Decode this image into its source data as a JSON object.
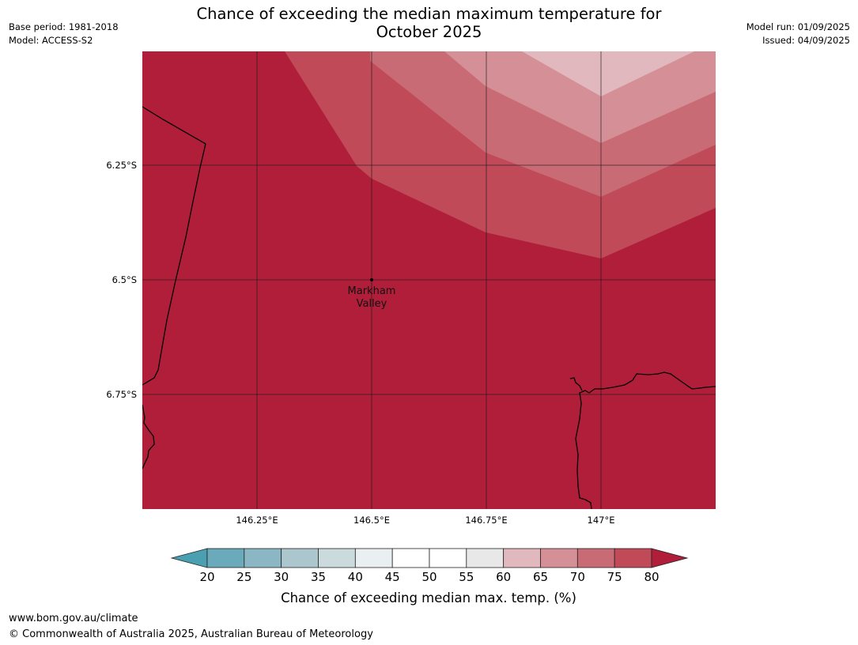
{
  "header": {
    "title_line1": "Chance of exceeding the median maximum temperature for",
    "title_line2": "October 2025",
    "base_period": "Base period: 1981-2018",
    "model": "Model: ACCESS-S2",
    "model_run": "Model run: 01/09/2025",
    "issued": "Issued: 04/09/2025"
  },
  "map": {
    "lat_labels": [
      "6.25°S",
      "6.5°S",
      "6.75°S"
    ],
    "lon_labels": [
      "146.25°E",
      "146.5°E",
      "146.75°E",
      "147°E"
    ],
    "place_label_line1": "Markham",
    "place_label_line2": "Valley",
    "bands": [
      {
        "range": ">80",
        "color": "#b01e39"
      },
      {
        "range": "75-80",
        "color": "#c04a58"
      },
      {
        "range": "70-75",
        "color": "#c96b74"
      },
      {
        "range": "65-70",
        "color": "#d58f96"
      },
      {
        "range": "60-65",
        "color": "#e0b8bd"
      }
    ]
  },
  "colorbar": {
    "ticks": [
      "20",
      "25",
      "30",
      "35",
      "40",
      "45",
      "50",
      "55",
      "60",
      "65",
      "70",
      "75",
      "80"
    ],
    "colors": [
      "#4a9fb0",
      "#6aaabb",
      "#8bb7c4",
      "#abc6cd",
      "#cbdadd",
      "#eaf0f1",
      "#ffffff",
      "#ffffff",
      "#e8e8e8",
      "#e0b8bd",
      "#d58f96",
      "#c96b74",
      "#c04a58",
      "#b01e39"
    ],
    "label": "Chance of exceeding median max. temp. (%)"
  },
  "footer": {
    "url": "www.bom.gov.au/climate",
    "copyright": "© Commonwealth of Australia 2025, Australian Bureau of Meteorology"
  }
}
